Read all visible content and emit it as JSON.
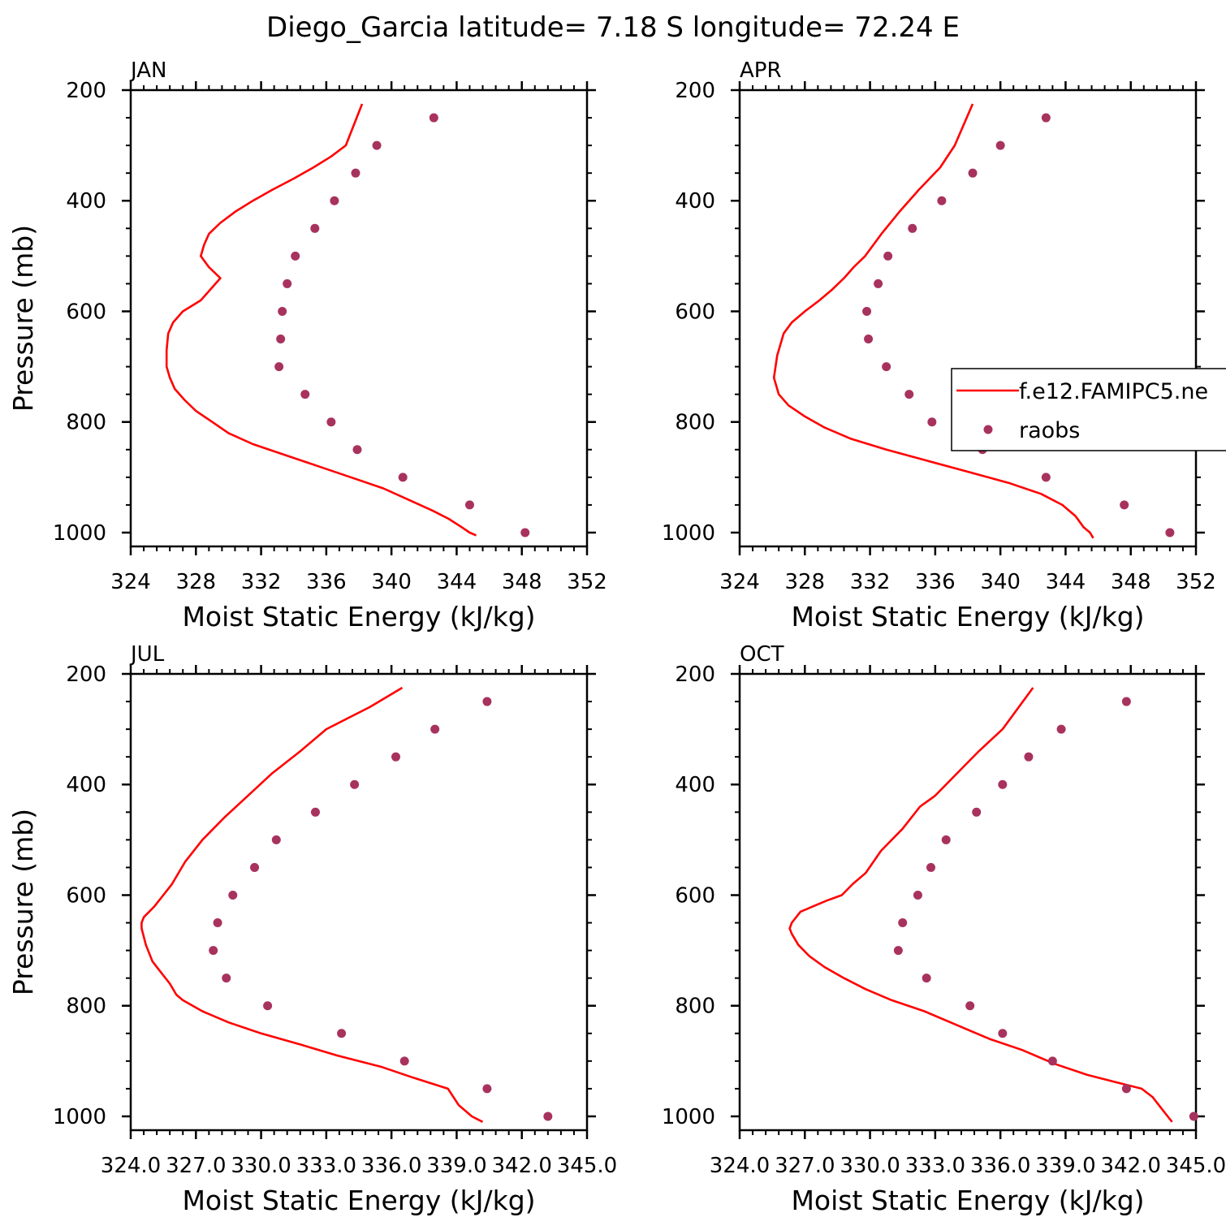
{
  "figure_title": "Diego_Garcia  latitude= 7.18 S longitude= 72.24 E",
  "legend": {
    "entries": [
      {
        "label": "f.e12.FAMIPC5.ne",
        "kind": "line"
      },
      {
        "label": "raobs",
        "kind": "marker"
      }
    ]
  },
  "colors": {
    "model": "#ff0000",
    "obs": "#a8325e"
  },
  "chart_data": [
    {
      "type": "line",
      "panel_title": "JAN",
      "xlabel": "Moist Static Energy (kJ/kg)",
      "ylabel": "Pressure (mb)",
      "xlim": [
        324,
        352
      ],
      "ylim": [
        1025,
        200
      ],
      "xticks": [
        "324",
        "328",
        "332",
        "336",
        "340",
        "344",
        "348",
        "352"
      ],
      "yticks": [
        "200",
        "400",
        "600",
        "800",
        "1000"
      ],
      "series": [
        {
          "name": "f.e12.FAMIPC5.ne",
          "kind": "line",
          "color": "#ff0000",
          "x": [
            345.2,
            344.8,
            344.3,
            343.5,
            342.5,
            341.0,
            339.5,
            337.5,
            335.5,
            333.5,
            331.5,
            330.0,
            329.0,
            328.0,
            327.3,
            326.7,
            326.4,
            326.2,
            326.2,
            326.3,
            326.6,
            327.2,
            328.3,
            329.5,
            328.8,
            328.3,
            328.5,
            328.8,
            329.5,
            330.4,
            331.5,
            332.7,
            334.0,
            335.2,
            336.3,
            337.2,
            338.2
          ],
          "y": [
            1005,
            1000,
            990,
            975,
            960,
            940,
            920,
            900,
            880,
            860,
            840,
            820,
            800,
            780,
            760,
            740,
            720,
            700,
            670,
            640,
            620,
            600,
            580,
            540,
            520,
            500,
            480,
            460,
            440,
            420,
            400,
            380,
            360,
            340,
            320,
            300,
            225
          ]
        },
        {
          "name": "raobs",
          "kind": "scatter",
          "color": "#a8325e",
          "x": [
            342.6,
            339.1,
            337.8,
            336.5,
            335.3,
            334.1,
            333.6,
            333.3,
            333.2,
            333.1,
            334.7,
            336.3,
            337.9,
            340.7,
            344.8,
            348.2
          ],
          "y": [
            250,
            300,
            350,
            400,
            450,
            500,
            550,
            600,
            650,
            700,
            750,
            800,
            850,
            900,
            950,
            1000
          ]
        }
      ]
    },
    {
      "type": "line",
      "panel_title": "APR",
      "xlabel": "Moist Static Energy (kJ/kg)",
      "ylabel": "",
      "xlim": [
        324,
        352
      ],
      "ylim": [
        1025,
        200
      ],
      "xticks": [
        "324",
        "328",
        "332",
        "336",
        "340",
        "344",
        "348",
        "352"
      ],
      "yticks": [
        "200",
        "400",
        "600",
        "800",
        "1000"
      ],
      "series": [
        {
          "name": "f.e12.FAMIPC5.ne",
          "kind": "line",
          "color": "#ff0000",
          "x": [
            345.7,
            345.5,
            345.1,
            344.6,
            343.8,
            342.5,
            340.5,
            338.0,
            335.5,
            333.0,
            330.8,
            329.2,
            328.0,
            327.0,
            326.4,
            326.1,
            326.3,
            326.7,
            327.2,
            328.0,
            328.9,
            329.7,
            330.4,
            331.0,
            331.7,
            332.7,
            333.8,
            335.0,
            336.3,
            337.2,
            338.3
          ],
          "y": [
            1010,
            1000,
            990,
            970,
            950,
            930,
            910,
            890,
            870,
            850,
            830,
            810,
            790,
            770,
            750,
            720,
            680,
            640,
            620,
            600,
            580,
            560,
            540,
            520,
            500,
            460,
            420,
            380,
            340,
            300,
            225
          ]
        },
        {
          "name": "raobs",
          "kind": "scatter",
          "color": "#a8325e",
          "x": [
            342.8,
            340.0,
            338.3,
            336.4,
            334.6,
            333.1,
            332.5,
            331.8,
            331.9,
            333.0,
            334.4,
            335.8,
            338.9,
            342.8,
            347.6,
            350.4
          ],
          "y": [
            250,
            300,
            350,
            400,
            450,
            500,
            550,
            600,
            650,
            700,
            750,
            800,
            850,
            900,
            950,
            1000
          ]
        }
      ]
    },
    {
      "type": "line",
      "panel_title": "JUL",
      "xlabel": "Moist Static Energy (kJ/kg)",
      "ylabel": "Pressure (mb)",
      "xlim": [
        324.0,
        345.0
      ],
      "ylim": [
        1025,
        200
      ],
      "xticks": [
        "324.0",
        "327.0",
        "330.0",
        "333.0",
        "336.0",
        "339.0",
        "342.0",
        "345.0"
      ],
      "yticks": [
        "200",
        "400",
        "600",
        "800",
        "1000"
      ],
      "series": [
        {
          "name": "f.e12.FAMIPC5.ne",
          "kind": "line",
          "color": "#ff0000",
          "x": [
            340.2,
            339.7,
            339.1,
            338.6,
            337.0,
            335.5,
            333.5,
            331.8,
            330.0,
            328.5,
            327.3,
            326.4,
            326.1,
            325.8,
            325.4,
            325.0,
            324.7,
            324.5,
            324.5,
            324.6,
            325.1,
            325.5,
            325.9,
            326.5,
            327.3,
            328.3,
            329.4,
            330.5,
            331.8,
            333.0,
            334.0,
            335.0,
            336.5
          ],
          "y": [
            1010,
            1000,
            980,
            950,
            930,
            910,
            890,
            870,
            850,
            830,
            810,
            790,
            780,
            760,
            740,
            720,
            690,
            660,
            650,
            640,
            620,
            600,
            580,
            540,
            500,
            460,
            420,
            380,
            340,
            300,
            280,
            260,
            225
          ]
        },
        {
          "name": "raobs",
          "kind": "scatter",
          "color": "#a8325e",
          "x": [
            340.4,
            338.0,
            336.2,
            334.3,
            332.5,
            330.7,
            329.7,
            328.7,
            328.0,
            327.8,
            328.4,
            330.3,
            333.7,
            336.6,
            340.4,
            343.2
          ],
          "y": [
            250,
            300,
            350,
            400,
            450,
            500,
            550,
            600,
            650,
            700,
            750,
            800,
            850,
            900,
            950,
            1000
          ]
        }
      ]
    },
    {
      "type": "line",
      "panel_title": "OCT",
      "xlabel": "Moist Static Energy (kJ/kg)",
      "ylabel": "",
      "xlim": [
        324.0,
        345.0
      ],
      "ylim": [
        1025,
        200
      ],
      "xticks": [
        "324.0",
        "327.0",
        "330.0",
        "333.0",
        "336.0",
        "339.0",
        "342.0",
        "345.0"
      ],
      "yticks": [
        "200",
        "400",
        "600",
        "800",
        "1000"
      ],
      "series": [
        {
          "name": "f.e12.FAMIPC5.ne",
          "kind": "line",
          "color": "#ff0000",
          "x": [
            343.9,
            343.7,
            343.4,
            343.0,
            342.5,
            341.5,
            340.0,
            338.5,
            337.0,
            335.5,
            334.0,
            332.5,
            331.0,
            329.8,
            328.8,
            327.9,
            327.2,
            326.7,
            326.4,
            326.3,
            326.4,
            326.8,
            327.4,
            328.0,
            328.7,
            329.2,
            329.8,
            330.5,
            331.5,
            332.3,
            333.0,
            334.0,
            335.0,
            336.1,
            337.5
          ],
          "y": [
            1010,
            1000,
            985,
            965,
            950,
            940,
            925,
            905,
            880,
            860,
            835,
            810,
            790,
            770,
            750,
            730,
            710,
            690,
            670,
            660,
            650,
            630,
            620,
            610,
            600,
            580,
            560,
            520,
            480,
            440,
            420,
            380,
            340,
            300,
            225
          ]
        },
        {
          "name": "raobs",
          "kind": "scatter",
          "color": "#a8325e",
          "x": [
            341.8,
            338.8,
            337.3,
            336.1,
            334.9,
            333.5,
            332.8,
            332.2,
            331.5,
            331.3,
            332.6,
            334.6,
            336.1,
            338.4,
            341.8,
            344.9
          ],
          "y": [
            250,
            300,
            350,
            400,
            450,
            500,
            550,
            600,
            650,
            700,
            750,
            800,
            850,
            900,
            950,
            1000
          ]
        }
      ]
    }
  ]
}
